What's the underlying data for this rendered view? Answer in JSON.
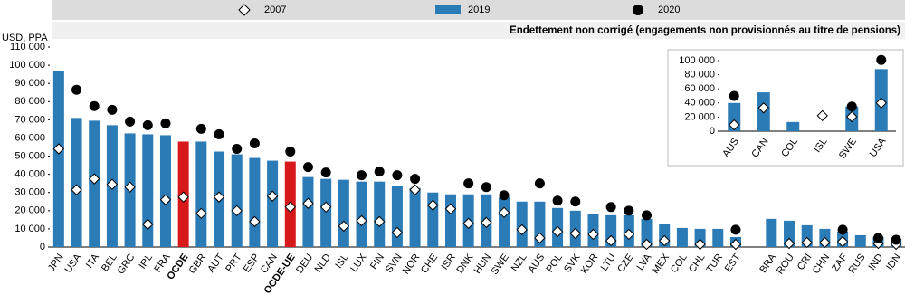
{
  "chart_data": [
    {
      "type": "bar",
      "subtitle": "Endettement non corrigé (engagements non provisionnés au titre de pensions)",
      "y_label": "USD, PPA",
      "categories": [
        "JPN",
        "USA",
        "ITA",
        "BEL",
        "GRC",
        "IRL",
        "FRA",
        "OCDE",
        "GBR",
        "AUT",
        "PRT",
        "ESP",
        "CAN",
        "OCDE-UE",
        "DEU",
        "NLD",
        "ISL",
        "LUX",
        "FIN",
        "SVN",
        "NOR",
        "CHE",
        "ISR",
        "DNK",
        "HUN",
        "SWE",
        "NZL",
        "AUS",
        "POL",
        "SVK",
        "KOR",
        "LTU",
        "CZE",
        "LVA",
        "MEX",
        "COL",
        "CHL",
        "TUR",
        "EST",
        null,
        "BRA",
        "ROU",
        "CRI",
        "CHN",
        "ZAF",
        "RUS",
        "IND",
        "IDN"
      ],
      "series": [
        {
          "name": "2007",
          "marker": "diamond",
          "color": "#ffffff",
          "values": [
            54000,
            31500,
            37500,
            34500,
            33000,
            12500,
            26000,
            27500,
            18500,
            27500,
            20000,
            14000,
            28000,
            22000,
            24000,
            22000,
            11500,
            14500,
            14000,
            8000,
            31500,
            23000,
            21000,
            13000,
            13500,
            19000,
            9500,
            5000,
            8500,
            7500,
            7000,
            3500,
            7000,
            1500,
            3500,
            null,
            1500,
            null,
            1500,
            null,
            null,
            2000,
            2500,
            2500,
            3000,
            null,
            2000,
            1500
          ]
        },
        {
          "name": "2019",
          "marker": "bar",
          "color": "#2a7bb6",
          "colors": [
            "#2a7bb6",
            "#2a7bb6",
            "#2a7bb6",
            "#2a7bb6",
            "#2a7bb6",
            "#2a7bb6",
            "#2a7bb6",
            "#d7191c",
            "#2a7bb6",
            "#2a7bb6",
            "#2a7bb6",
            "#2a7bb6",
            "#2a7bb6",
            "#d7191c",
            "#2a7bb6",
            "#2a7bb6",
            "#2a7bb6",
            "#2a7bb6",
            "#2a7bb6",
            "#2a7bb6",
            "#2a7bb6",
            "#2a7bb6",
            "#2a7bb6",
            "#2a7bb6",
            "#2a7bb6",
            "#2a7bb6",
            "#2a7bb6",
            "#2a7bb6",
            "#2a7bb6",
            "#2a7bb6",
            "#2a7bb6",
            "#2a7bb6",
            "#2a7bb6",
            "#2a7bb6",
            "#2a7bb6",
            "#2a7bb6",
            "#2a7bb6",
            "#2a7bb6",
            "#2a7bb6",
            null,
            "#2a7bb6",
            "#2a7bb6",
            "#2a7bb6",
            "#2a7bb6",
            "#2a7bb6",
            "#2a7bb6",
            "#2a7bb6",
            "#2a7bb6"
          ],
          "values": [
            97000,
            71000,
            69500,
            67000,
            62500,
            62000,
            61500,
            58000,
            58000,
            52500,
            51000,
            49000,
            47500,
            47000,
            38500,
            37500,
            37000,
            36000,
            36000,
            33500,
            32500,
            30000,
            29000,
            29000,
            29000,
            27500,
            25000,
            25000,
            21500,
            20000,
            18000,
            17500,
            17500,
            15500,
            12500,
            10500,
            10000,
            10000,
            5500,
            null,
            15500,
            14500,
            12000,
            10000,
            8500,
            6500,
            5500,
            4500
          ]
        },
        {
          "name": "2020",
          "marker": "circle",
          "color": "#000000",
          "values": [
            null,
            86500,
            77500,
            75500,
            69000,
            67000,
            68000,
            null,
            65000,
            62000,
            54000,
            57000,
            null,
            52500,
            44000,
            41000,
            null,
            39500,
            41500,
            39500,
            37500,
            null,
            null,
            35000,
            33000,
            28500,
            null,
            35000,
            25500,
            25000,
            null,
            22000,
            20000,
            17500,
            null,
            null,
            null,
            null,
            9500,
            null,
            null,
            null,
            null,
            null,
            9500,
            null,
            5000,
            4000
          ]
        }
      ],
      "ylim": [
        0,
        110000
      ],
      "yticks": [
        0,
        {
          "value": 10000,
          "label": "10 000"
        },
        {
          "value": 20000,
          "label": "20 000"
        },
        {
          "value": 30000,
          "label": "30 000"
        },
        {
          "value": 40000,
          "label": "40 000"
        },
        {
          "value": 50000,
          "label": "50 000"
        },
        {
          "value": 60000,
          "label": "60 000"
        },
        {
          "value": 70000,
          "label": "70 000"
        },
        {
          "value": 80000,
          "label": "80 000"
        },
        {
          "value": 90000,
          "label": "90 000"
        },
        {
          "value": 100000,
          "label": "100 000"
        },
        {
          "value": 110000,
          "label": "110 000"
        }
      ],
      "grid": false,
      "legend": "top"
    },
    {
      "type": "bar",
      "categories": [
        "AUS",
        "CAN",
        "COL",
        "ISL",
        "SWE",
        "USA"
      ],
      "series": [
        {
          "marker": "diamond",
          "color": "#ffffff",
          "values": [
            9000,
            33000,
            null,
            22000,
            20500,
            40000
          ]
        },
        {
          "marker": "bar",
          "color": "#2a7bb6",
          "values": [
            40000,
            55000,
            13000,
            null,
            35000,
            88000
          ]
        },
        {
          "marker": "circle",
          "color": "#000000",
          "values": [
            50000,
            null,
            null,
            null,
            35000,
            101000
          ]
        }
      ],
      "ylim": [
        0,
        100000
      ],
      "yticks": [
        0,
        {
          "value": 20000,
          "label": "20 000"
        },
        {
          "value": 40000,
          "label": "40 000"
        },
        {
          "value": 60000,
          "label": "60 000"
        },
        {
          "value": 80000,
          "label": "80 000"
        },
        {
          "value": 100000,
          "label": "100 000"
        }
      ],
      "grid": false
    }
  ]
}
